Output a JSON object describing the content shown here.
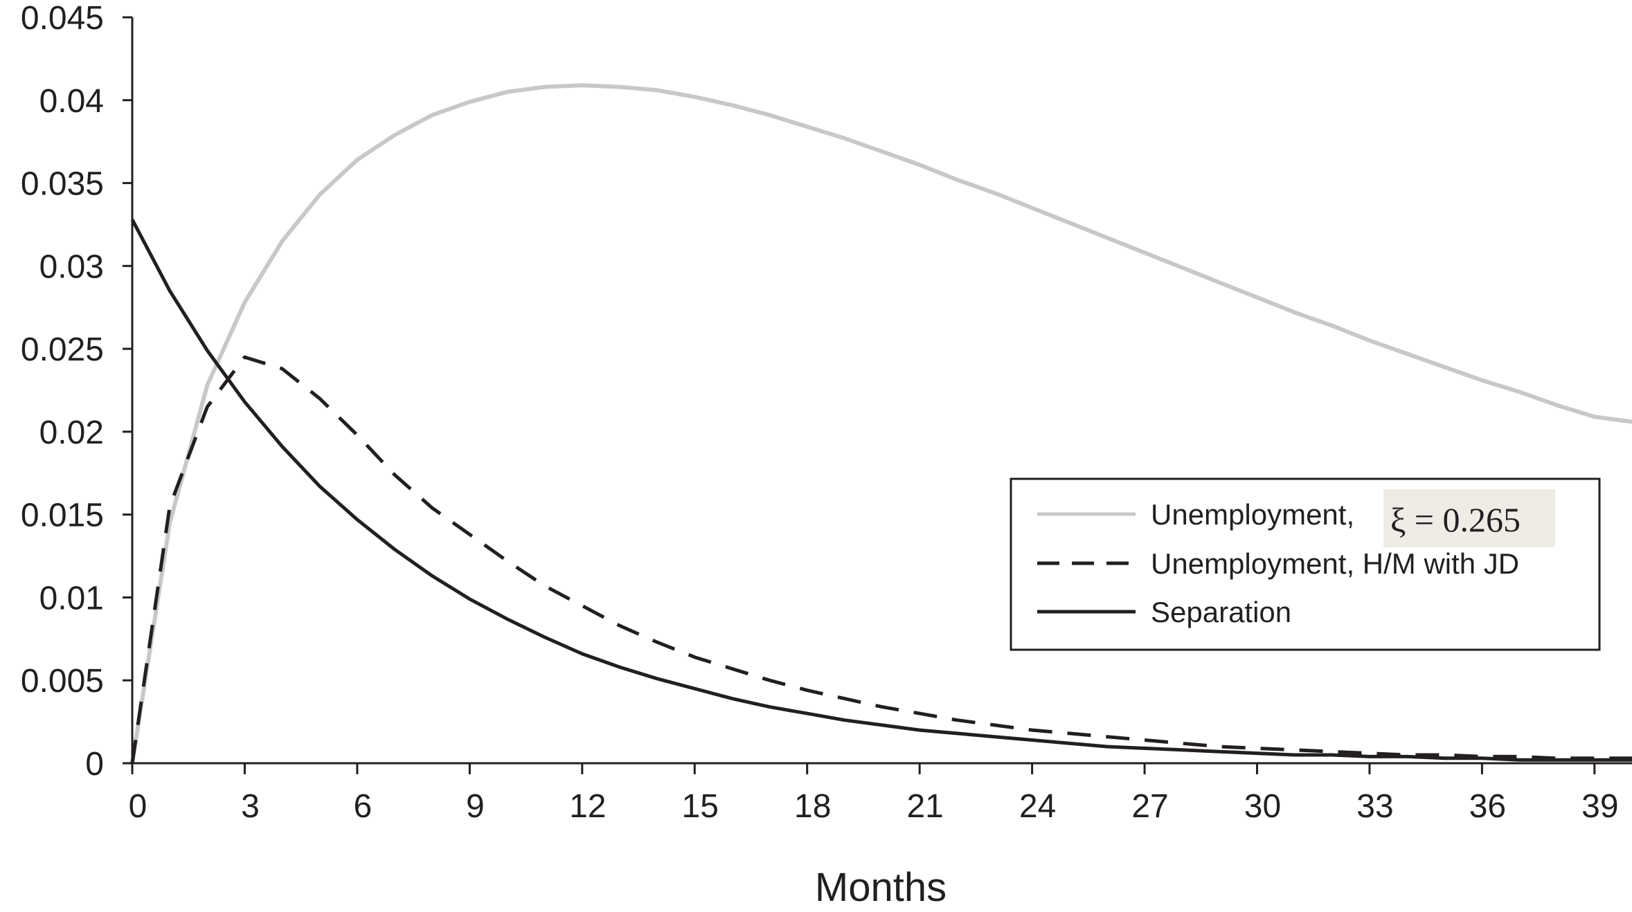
{
  "chart_data": {
    "type": "line",
    "xlabel": "Months",
    "ylabel": "",
    "xlim": [
      0,
      40
    ],
    "ylim": [
      0,
      0.045
    ],
    "x_ticks": [
      0,
      3,
      6,
      9,
      12,
      15,
      18,
      21,
      24,
      27,
      30,
      33,
      36,
      39
    ],
    "y_ticks": [
      "0",
      "0.005",
      "0.01",
      "0.015",
      "0.02",
      "0.025",
      "0.03",
      "0.035",
      "0.04",
      "0.045"
    ],
    "grid": false,
    "legend_position": "right",
    "x": [
      0,
      1,
      2,
      3,
      4,
      5,
      6,
      7,
      8,
      9,
      10,
      11,
      12,
      13,
      14,
      15,
      16,
      17,
      18,
      19,
      20,
      21,
      22,
      23,
      24,
      25,
      26,
      27,
      28,
      29,
      30,
      31,
      32,
      33,
      34,
      35,
      36,
      37,
      38,
      39,
      40
    ],
    "series": [
      {
        "name": "Unemployment, ",
        "name_math": "ξ = 0.265",
        "color": "#c8c8c8",
        "style": "solid",
        "values": [
          0,
          0.0145,
          0.0228,
          0.0278,
          0.0315,
          0.0343,
          0.0364,
          0.0379,
          0.0391,
          0.0399,
          0.0405,
          0.0408,
          0.0409,
          0.0408,
          0.0406,
          0.0402,
          0.0397,
          0.0391,
          0.0384,
          0.0377,
          0.0369,
          0.0361,
          0.0352,
          0.0344,
          0.0335,
          0.0326,
          0.0317,
          0.0308,
          0.0299,
          0.029,
          0.0281,
          0.0272,
          0.0264,
          0.0255,
          0.0247,
          0.0239,
          0.0231,
          0.0224,
          0.0216,
          0.0209,
          0.0206
        ]
      },
      {
        "name": "Unemployment, H/M with JD",
        "color": "#231f20",
        "style": "dashed",
        "values": [
          0,
          0.0155,
          0.0215,
          0.0245,
          0.0238,
          0.022,
          0.0198,
          0.0174,
          0.0154,
          0.0138,
          0.0122,
          0.0107,
          0.0095,
          0.0083,
          0.0073,
          0.0064,
          0.0057,
          0.005,
          0.0044,
          0.0039,
          0.0034,
          0.003,
          0.0026,
          0.0023,
          0.002,
          0.0018,
          0.0016,
          0.0014,
          0.0012,
          0.001,
          0.0009,
          0.0008,
          0.0007,
          0.0006,
          0.0005,
          0.0005,
          0.0004,
          0.0004,
          0.0003,
          0.0003,
          0.0003
        ]
      },
      {
        "name": "Separation",
        "color": "#231f20",
        "style": "solid",
        "values": [
          0.0328,
          0.0285,
          0.0249,
          0.0218,
          0.0191,
          0.0167,
          0.0147,
          0.0129,
          0.0113,
          0.0099,
          0.0087,
          0.0076,
          0.0066,
          0.0058,
          0.0051,
          0.0045,
          0.0039,
          0.0034,
          0.003,
          0.0026,
          0.0023,
          0.002,
          0.0018,
          0.0016,
          0.0014,
          0.0012,
          0.001,
          0.0009,
          0.0008,
          0.0007,
          0.0006,
          0.0005,
          0.0005,
          0.0004,
          0.0004,
          0.0003,
          0.0003,
          0.0002,
          0.0002,
          0.0002,
          0.0002
        ]
      }
    ]
  }
}
